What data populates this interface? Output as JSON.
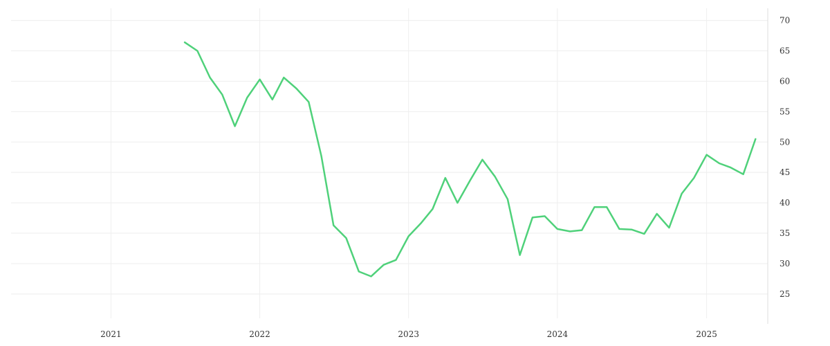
{
  "chart_data": {
    "type": "line",
    "title": "",
    "xlabel": "",
    "ylabel": "",
    "x_ticks": [
      "2021",
      "2022",
      "2023",
      "2024",
      "2025"
    ],
    "y_ticks": [
      25,
      30,
      35,
      40,
      45,
      50,
      55,
      60,
      65,
      70
    ],
    "xlim": [
      "2020-05-01",
      "2025-05-31"
    ],
    "ylim": [
      21,
      72
    ],
    "grid": true,
    "y_axis_position": "right",
    "colors": {
      "line": "#4fd17a",
      "grid": "#eeeeee"
    },
    "series": [
      {
        "x": [
          "2021-07",
          "2021-08",
          "2021-09",
          "2021-10",
          "2021-11",
          "2021-12",
          "2022-01",
          "2022-02",
          "2022-03",
          "2022-04",
          "2022-05",
          "2022-06",
          "2022-07",
          "2022-08",
          "2022-09",
          "2022-10",
          "2022-11",
          "2022-12",
          "2023-01",
          "2023-02",
          "2023-03",
          "2023-04",
          "2023-05",
          "2023-06",
          "2023-07",
          "2023-08",
          "2023-09",
          "2023-10",
          "2023-11",
          "2023-12",
          "2024-01",
          "2024-02",
          "2024-03",
          "2024-04",
          "2024-05",
          "2024-06",
          "2024-07",
          "2024-08",
          "2024-09",
          "2024-10",
          "2024-11",
          "2024-12",
          "2025-01",
          "2025-02",
          "2025-03",
          "2025-04",
          "2025-05"
        ],
        "y": [
          66.4,
          65.0,
          60.6,
          57.8,
          52.6,
          57.3,
          60.3,
          57.0,
          60.6,
          58.8,
          56.6,
          47.7,
          36.3,
          34.2,
          28.7,
          27.9,
          29.8,
          30.6,
          34.5,
          36.7,
          39.0,
          44.1,
          40.0,
          43.7,
          47.1,
          44.3,
          40.6,
          31.4,
          37.6,
          37.8,
          35.7,
          35.3,
          35.5,
          39.3,
          39.3,
          35.7,
          35.6,
          34.9,
          38.2,
          35.9,
          41.5,
          44.1,
          47.9,
          46.5,
          45.8,
          44.7,
          50.5
        ]
      }
    ]
  }
}
